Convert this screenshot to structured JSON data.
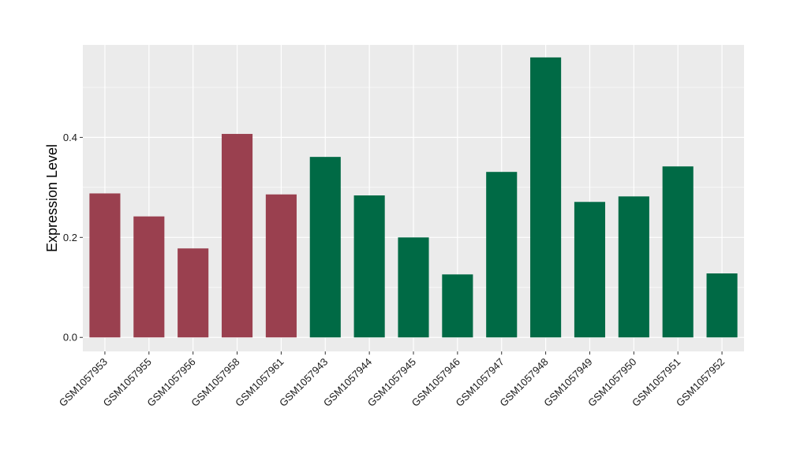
{
  "chart_data": {
    "type": "bar",
    "ylabel": "Expression Level",
    "xlabel": "",
    "ylim": [
      -0.028,
      0.585
    ],
    "y_ticks": [
      0.0,
      0.2,
      0.4
    ],
    "y_tick_labels": [
      "0.0",
      "0.2",
      "0.4"
    ],
    "grid": true,
    "panel_background": "#ebebeb",
    "grid_color": "#ffffff",
    "categories": [
      "GSM1057953",
      "GSM1057955",
      "GSM1057956",
      "GSM1057958",
      "GSM1057961",
      "GSM1057943",
      "GSM1057944",
      "GSM1057945",
      "GSM1057946",
      "GSM1057947",
      "GSM1057948",
      "GSM1057949",
      "GSM1057950",
      "GSM1057951",
      "GSM1057952"
    ],
    "values": [
      0.288,
      0.242,
      0.178,
      0.407,
      0.286,
      0.361,
      0.284,
      0.2,
      0.126,
      0.331,
      0.56,
      0.271,
      0.282,
      0.342,
      0.128
    ],
    "colors": [
      "#9a404f",
      "#9a404f",
      "#9a404f",
      "#9a404f",
      "#9a404f",
      "#006a45",
      "#006a45",
      "#006a45",
      "#006a45",
      "#006a45",
      "#006a45",
      "#006a45",
      "#006a45",
      "#006a45",
      "#006a45"
    ]
  }
}
